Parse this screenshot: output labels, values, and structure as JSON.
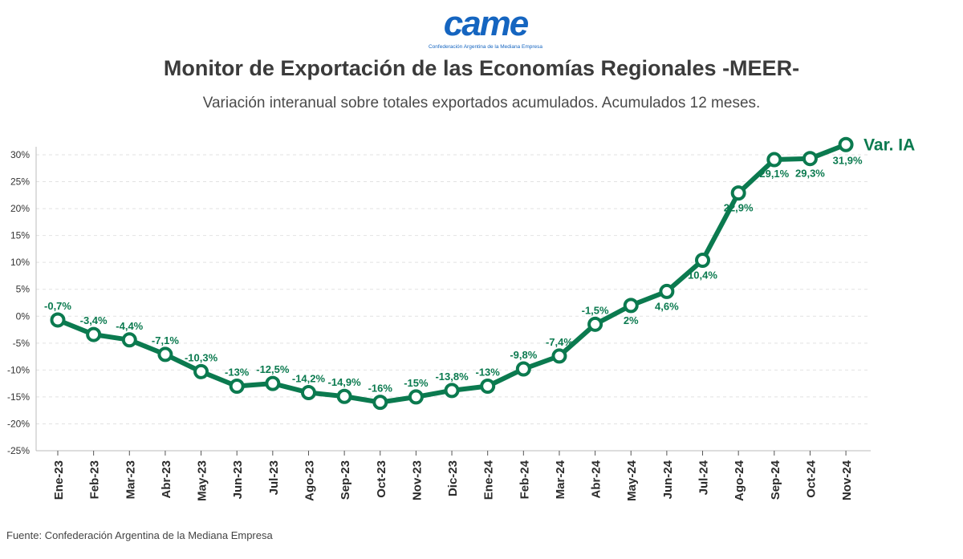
{
  "logo": {
    "text": "came",
    "caption": "Confederación Argentina de la Mediana Empresa"
  },
  "colors": {
    "line": "#0b7a4f",
    "brand": "#1565c0",
    "grid": "#e2e2e2",
    "axis": "#bbbbbb"
  },
  "source": "Fuente: Confederación Argentina de la Mediana Empresa",
  "chart_data": {
    "type": "line",
    "title": "Monitor de Exportación de las Economías Regionales -MEER-",
    "subtitle": "Variación interanual sobre totales exportados acumulados. Acumulados 12 meses.",
    "categories": [
      "Ene-23",
      "Feb-23",
      "Mar-23",
      "Abr-23",
      "May-23",
      "Jun-23",
      "Jul-23",
      "Ago-23",
      "Sep-23",
      "Oct-23",
      "Nov-23",
      "Dic-23",
      "Ene-24",
      "Feb-24",
      "Mar-24",
      "Abr-24",
      "May-24",
      "Jun-24",
      "Jul-24",
      "Ago-24",
      "Sep-24",
      "Oct-24",
      "Nov-24"
    ],
    "series": [
      {
        "name": "Var. IA",
        "values": [
          -0.7,
          -3.4,
          -4.4,
          -7.1,
          -10.3,
          -13,
          -12.5,
          -14.2,
          -14.9,
          -16,
          -15,
          -13.8,
          -13,
          -9.8,
          -7.4,
          -1.5,
          2,
          4.6,
          10.4,
          22.9,
          29.1,
          29.3,
          31.9
        ],
        "labels": [
          "-0,7%",
          "-3,4%",
          "-4,4%",
          "-7,1%",
          "-10,3%",
          "-13%",
          "-12,5%",
          "-14,2%",
          "-14,9%",
          "-16%",
          "-15%",
          "-13,8%",
          "-13%",
          "-9,8%",
          "-7,4%",
          "-1,5%",
          "2%",
          "4,6%",
          "10,4%",
          "22,9%",
          "29,1%",
          "29,3%",
          "31,9%"
        ]
      }
    ],
    "yticks": [
      30,
      25,
      20,
      15,
      10,
      5,
      0,
      -5,
      -10,
      -15,
      -20,
      -25
    ],
    "ytick_labels": [
      "30%",
      "25%",
      "20%",
      "15%",
      "10%",
      "5%",
      "0%",
      "-5%",
      "-10%",
      "-15%",
      "-20%",
      "-25%"
    ],
    "ylim": [
      -25,
      30
    ],
    "grid": true,
    "legend": "line-end"
  }
}
